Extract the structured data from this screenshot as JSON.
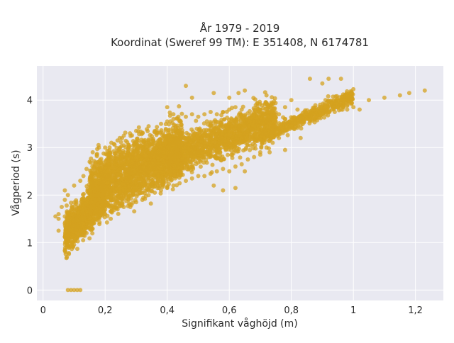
{
  "chart_data": {
    "type": "scatter",
    "title": "År 1979 - 2019",
    "subtitle": "Koordinat (Sweref 99 TM): E 351408, N 6174781",
    "xlabel": "Signifikant våghöjd (m)",
    "ylabel": "Vågperiod (s)",
    "xlim": [
      -0.02,
      1.29
    ],
    "ylim": [
      -0.22,
      4.72
    ],
    "x_ticks": [
      0,
      0.2,
      0.4,
      0.6,
      0.8,
      1.0,
      1.2
    ],
    "x_tick_labels": [
      "0",
      "0,2",
      "0,4",
      "0,6",
      "0,8",
      "1",
      "1,2"
    ],
    "y_ticks": [
      0,
      1,
      2,
      3,
      4
    ],
    "y_tick_labels": [
      "0",
      "1",
      "2",
      "3",
      "4"
    ],
    "grid": true,
    "legend": "none",
    "marker_color": "#d4a21f",
    "plot_background": "#e9e9f1",
    "grid_color": "#ffffff",
    "series": [
      {
        "points": [
          [
            0.08,
            0.0
          ],
          [
            0.09,
            0.0
          ],
          [
            0.1,
            0.0
          ],
          [
            0.11,
            0.0
          ],
          [
            0.12,
            0.0
          ],
          [
            0.04,
            1.55
          ],
          [
            0.05,
            1.6
          ],
          [
            0.05,
            1.5
          ],
          [
            0.05,
            1.25
          ],
          [
            0.06,
            1.75
          ],
          [
            0.07,
            1.55
          ],
          [
            0.07,
            1.9
          ],
          [
            0.07,
            2.1
          ],
          [
            0.08,
            1.2
          ],
          [
            0.08,
            1.45
          ],
          [
            0.08,
            2.0
          ],
          [
            0.09,
            1.1
          ],
          [
            0.1,
            1.15
          ],
          [
            0.1,
            1.35
          ],
          [
            0.1,
            2.2
          ],
          [
            0.11,
            1.1
          ],
          [
            0.12,
            1.15
          ],
          [
            0.12,
            1.3
          ],
          [
            0.12,
            2.3
          ],
          [
            0.13,
            1.15
          ],
          [
            0.13,
            1.4
          ],
          [
            0.13,
            2.4
          ],
          [
            0.14,
            1.2
          ],
          [
            0.14,
            2.55
          ],
          [
            0.15,
            1.3
          ],
          [
            0.15,
            2.7
          ],
          [
            0.16,
            1.45
          ],
          [
            0.16,
            2.9
          ],
          [
            0.17,
            1.5
          ],
          [
            0.18,
            1.55
          ],
          [
            0.18,
            3.0
          ],
          [
            0.2,
            1.6
          ],
          [
            0.2,
            3.0
          ],
          [
            0.22,
            1.65
          ],
          [
            0.22,
            3.1
          ],
          [
            0.24,
            1.7
          ],
          [
            0.24,
            3.15
          ],
          [
            0.26,
            1.75
          ],
          [
            0.26,
            3.25
          ],
          [
            0.28,
            1.8
          ],
          [
            0.28,
            3.3
          ],
          [
            0.3,
            1.85
          ],
          [
            0.3,
            3.35
          ],
          [
            0.32,
            1.9
          ],
          [
            0.32,
            3.3
          ],
          [
            0.34,
            2.0
          ],
          [
            0.34,
            3.45
          ],
          [
            0.36,
            2.05
          ],
          [
            0.36,
            3.35
          ],
          [
            0.38,
            2.1
          ],
          [
            0.38,
            3.5
          ],
          [
            0.4,
            2.15
          ],
          [
            0.4,
            3.55
          ],
          [
            0.42,
            2.2
          ],
          [
            0.42,
            3.6
          ],
          [
            0.44,
            2.25
          ],
          [
            0.44,
            3.55
          ],
          [
            0.46,
            2.3
          ],
          [
            0.46,
            3.65
          ],
          [
            0.48,
            2.35
          ],
          [
            0.48,
            3.7
          ],
          [
            0.5,
            2.4
          ],
          [
            0.5,
            3.65
          ],
          [
            0.52,
            2.4
          ],
          [
            0.52,
            3.7
          ],
          [
            0.54,
            2.45
          ],
          [
            0.54,
            3.75
          ],
          [
            0.56,
            2.5
          ],
          [
            0.56,
            3.7
          ],
          [
            0.58,
            2.55
          ],
          [
            0.58,
            3.75
          ],
          [
            0.6,
            2.5
          ],
          [
            0.6,
            3.8
          ],
          [
            0.62,
            2.6
          ],
          [
            0.62,
            3.85
          ],
          [
            0.64,
            2.65
          ],
          [
            0.64,
            3.8
          ],
          [
            0.66,
            2.75
          ],
          [
            0.66,
            3.55
          ],
          [
            0.68,
            2.8
          ],
          [
            0.68,
            3.45
          ],
          [
            0.7,
            2.9
          ],
          [
            0.7,
            3.55
          ],
          [
            0.72,
            3.0
          ],
          [
            0.72,
            3.6
          ],
          [
            0.74,
            3.1
          ],
          [
            0.74,
            3.65
          ],
          [
            0.76,
            3.2
          ],
          [
            0.76,
            3.7
          ],
          [
            0.78,
            3.35
          ],
          [
            0.78,
            3.85
          ],
          [
            0.8,
            3.45
          ],
          [
            0.82,
            3.5
          ],
          [
            0.82,
            3.8
          ],
          [
            0.84,
            3.55
          ],
          [
            0.86,
            3.6
          ],
          [
            0.88,
            3.65
          ],
          [
            0.9,
            3.7
          ],
          [
            0.92,
            3.75
          ],
          [
            0.94,
            3.75
          ],
          [
            0.96,
            3.8
          ],
          [
            0.98,
            3.8
          ],
          [
            1.0,
            3.85
          ],
          [
            1.02,
            3.8
          ],
          [
            1.05,
            4.0
          ],
          [
            1.1,
            4.05
          ],
          [
            1.15,
            4.1
          ],
          [
            1.18,
            4.15
          ],
          [
            1.23,
            4.2
          ],
          [
            0.46,
            4.3
          ],
          [
            0.48,
            4.05
          ],
          [
            0.55,
            4.15
          ],
          [
            0.6,
            4.05
          ],
          [
            0.63,
            4.15
          ],
          [
            0.65,
            4.2
          ],
          [
            0.72,
            4.1
          ],
          [
            0.8,
            4.0
          ],
          [
            0.86,
            4.45
          ],
          [
            0.9,
            4.35
          ],
          [
            0.91,
            4.0
          ],
          [
            0.92,
            4.45
          ],
          [
            0.96,
            4.45
          ],
          [
            0.4,
            3.85
          ],
          [
            0.55,
            2.2
          ],
          [
            0.58,
            2.1
          ],
          [
            0.62,
            2.15
          ],
          [
            0.65,
            2.5
          ],
          [
            0.7,
            2.85
          ],
          [
            0.73,
            2.9
          ],
          [
            0.78,
            2.95
          ],
          [
            0.83,
            3.2
          ]
        ],
        "clouds": [
          {
            "x_range": [
              0.07,
              0.2
            ],
            "y_center": 1.6,
            "y_spread": 0.45,
            "count": 900
          },
          {
            "x_range": [
              0.15,
              0.45
            ],
            "y_center": 2.55,
            "y_spread": 0.7,
            "count": 2200
          },
          {
            "x_range": [
              0.4,
              0.75
            ],
            "y_center": 3.2,
            "y_spread": 0.45,
            "count": 1400
          },
          {
            "x_range": [
              0.7,
              1.0
            ],
            "y_center": 3.65,
            "y_spread": 0.18,
            "count": 500
          }
        ]
      }
    ]
  }
}
